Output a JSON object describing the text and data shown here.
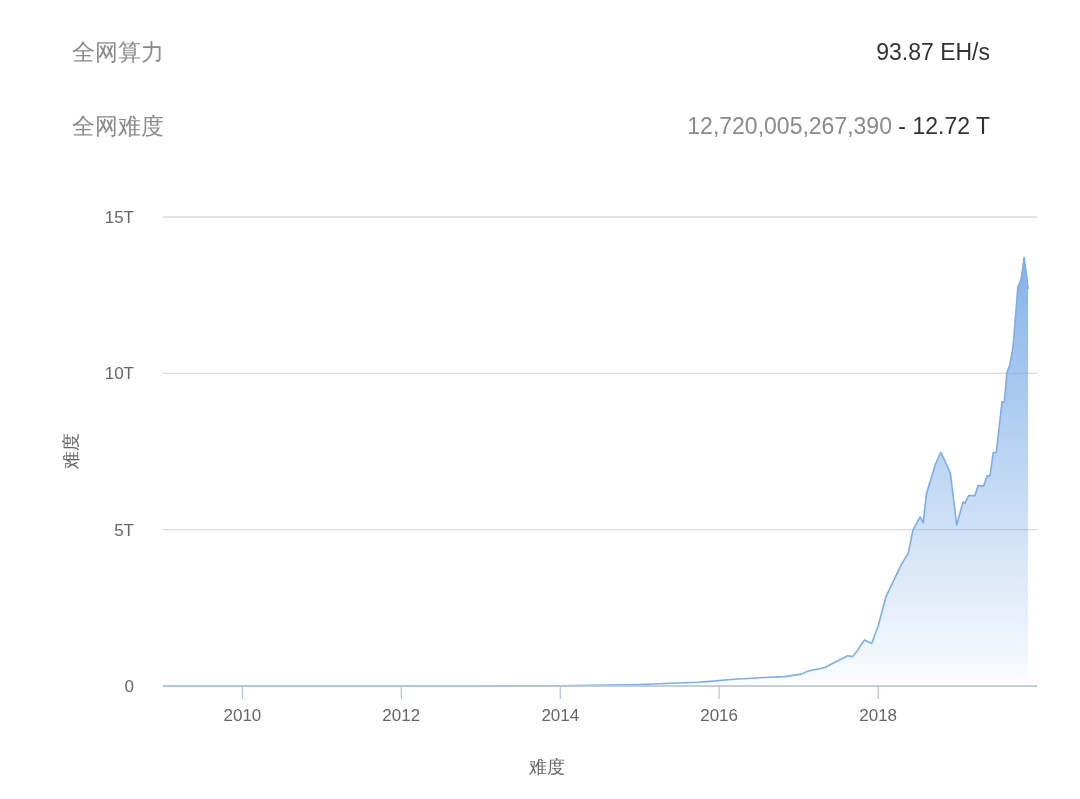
{
  "chart_data": {
    "type": "area",
    "xlabel": "难度",
    "ylabel": "难度",
    "annotations": [
      "全网算力",
      "93.87 EH/s",
      "全网难度",
      "12,720,005,267,390",
      "- 12.72 T"
    ],
    "xlim": [
      "2009-01-01",
      "2020-01-01"
    ],
    "xticks": [
      {
        "value": "2010-01-01",
        "label": "2010"
      },
      {
        "value": "2012-01-01",
        "label": "2012"
      },
      {
        "value": "2014-01-01",
        "label": "2014"
      },
      {
        "value": "2016-01-01",
        "label": "2016"
      },
      {
        "value": "2018-01-01",
        "label": "2018"
      }
    ],
    "ylim": [
      0,
      15
    ],
    "yticks": [
      0,
      {
        "value": 5,
        "label": "5T"
      },
      {
        "value": 10,
        "label": "10T"
      },
      {
        "value": 15,
        "label": "15T"
      }
    ],
    "grid": "y",
    "marker": "none",
    "line_style": "solid",
    "series": [
      {
        "color": "#7eaee8",
        "x": [
          "2009-01-03",
          "2011-01-01",
          "2013-01-01",
          "2014-01-01",
          "2015-01-01",
          "2015-09-24",
          "2015-11-05",
          "2016-02-24",
          "2016-07-26",
          "2016-10-26",
          "2017-01-12",
          "2017-02-14",
          "2017-05-01",
          "2017-06-14",
          "2017-08-15",
          "2017-09-06",
          "2017-10-01",
          "2017-10-30",
          "2017-12-02",
          "2018-01-01",
          "2018-02-06",
          "2018-03-18",
          "2018-04-20",
          "2018-05-19",
          "2018-06-10",
          "2018-07-13",
          "2018-07-27",
          "2018-08-11",
          "2018-09-20",
          "2018-10-16",
          "2018-11-03",
          "2018-11-29",
          "2018-12-28",
          "2019-01-26",
          "2019-02-03",
          "2019-02-21",
          "2019-03-22",
          "2019-04-05",
          "2019-05-01",
          "2019-05-16",
          "2019-05-30",
          "2019-06-14",
          "2019-06-28",
          "2019-07-24",
          "2019-08-04",
          "2019-08-15",
          "2019-08-29",
          "2019-09-13",
          "2019-10-05",
          "2019-10-19",
          "2019-11-03",
          "2019-11-21"
        ],
        "values": [
          0,
          0,
          0,
          0.01,
          0.05,
          0.12,
          0.14,
          0.21,
          0.27,
          0.3,
          0.38,
          0.48,
          0.59,
          0.75,
          0.97,
          0.94,
          1.17,
          1.47,
          1.36,
          1.92,
          2.86,
          3.44,
          3.92,
          4.24,
          4.99,
          5.41,
          5.22,
          6.16,
          7.07,
          7.47,
          7.21,
          6.8,
          5.15,
          5.89,
          5.84,
          6.09,
          6.09,
          6.41,
          6.4,
          6.72,
          6.72,
          7.47,
          7.47,
          9.09,
          9.09,
          10.0,
          10.27,
          10.85,
          12.77,
          12.98,
          13.71,
          12.72
        ]
      }
    ]
  }
}
